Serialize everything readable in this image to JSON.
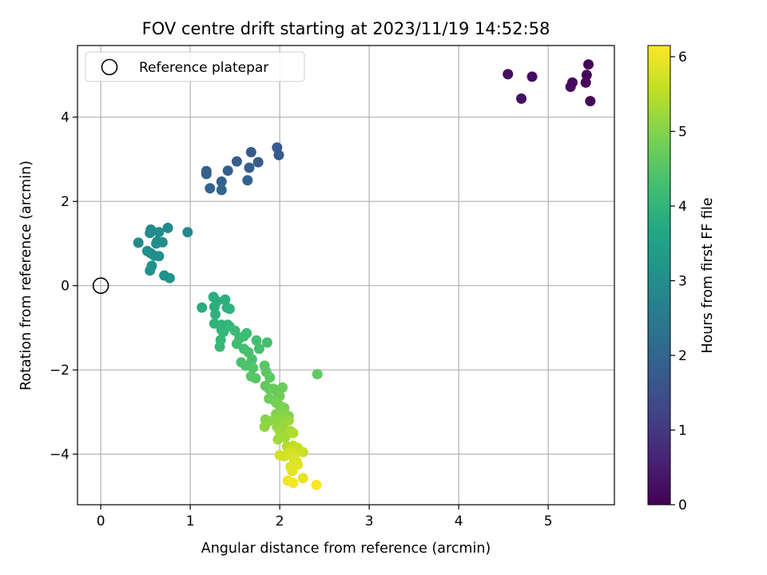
{
  "chart_data": {
    "type": "scatter",
    "title": "FOV centre drift starting at 2023/11/19 14:52:58",
    "xlabel": "Angular distance from reference (arcmin)",
    "ylabel": "Rotation from reference (arcmin)",
    "xlim": [
      -0.26,
      5.74
    ],
    "ylim": [
      -5.2,
      5.7
    ],
    "xticks": [
      0,
      1,
      2,
      3,
      4,
      5
    ],
    "yticks": [
      -4,
      -2,
      0,
      2,
      4
    ],
    "xtick_labels": [
      "0",
      "1",
      "2",
      "3",
      "4",
      "5"
    ],
    "ytick_labels": [
      "−4",
      "−2",
      "0",
      "2",
      "4"
    ],
    "grid": true,
    "legend": {
      "position": "top-left",
      "entries": [
        {
          "label": "Reference platepar",
          "marker": "open-circle"
        }
      ]
    },
    "reference_point": {
      "x": 0,
      "y": 0,
      "label": "Reference platepar"
    },
    "colorbar": {
      "label": "Hours from first FF file",
      "colormap": "viridis",
      "range": [
        0,
        6.15
      ],
      "ticks": [
        0,
        1,
        2,
        3,
        4,
        5,
        6
      ],
      "tick_labels": [
        "0",
        "1",
        "2",
        "3",
        "4",
        "5",
        "6"
      ]
    },
    "points": [
      {
        "x": 5.45,
        "y": 5.25,
        "h": 0.02
      },
      {
        "x": 5.43,
        "y": 5.0,
        "h": 0.05
      },
      {
        "x": 5.42,
        "y": 4.82,
        "h": 0.08
      },
      {
        "x": 5.47,
        "y": 4.38,
        "h": 0.1
      },
      {
        "x": 5.27,
        "y": 4.82,
        "h": 0.12
      },
      {
        "x": 5.25,
        "y": 4.72,
        "h": 0.15
      },
      {
        "x": 4.82,
        "y": 4.96,
        "h": 0.2
      },
      {
        "x": 4.55,
        "y": 5.02,
        "h": 0.25
      },
      {
        "x": 4.7,
        "y": 4.44,
        "h": 0.3
      },
      {
        "x": 1.97,
        "y": 3.28,
        "h": 1.7
      },
      {
        "x": 1.99,
        "y": 3.1,
        "h": 1.72
      },
      {
        "x": 1.68,
        "y": 3.17,
        "h": 1.75
      },
      {
        "x": 1.76,
        "y": 2.93,
        "h": 1.78
      },
      {
        "x": 1.52,
        "y": 2.95,
        "h": 1.8
      },
      {
        "x": 1.66,
        "y": 2.8,
        "h": 1.83
      },
      {
        "x": 1.42,
        "y": 2.73,
        "h": 1.85
      },
      {
        "x": 1.18,
        "y": 2.72,
        "h": 1.88
      },
      {
        "x": 1.18,
        "y": 2.65,
        "h": 1.9
      },
      {
        "x": 1.35,
        "y": 2.47,
        "h": 1.92
      },
      {
        "x": 1.64,
        "y": 2.5,
        "h": 1.95
      },
      {
        "x": 1.22,
        "y": 2.31,
        "h": 1.98
      },
      {
        "x": 1.35,
        "y": 2.27,
        "h": 2.0
      },
      {
        "x": 0.97,
        "y": 1.27,
        "h": 2.85
      },
      {
        "x": 0.75,
        "y": 1.37,
        "h": 2.87
      },
      {
        "x": 0.56,
        "y": 1.33,
        "h": 2.88
      },
      {
        "x": 0.55,
        "y": 1.25,
        "h": 2.9
      },
      {
        "x": 0.65,
        "y": 1.27,
        "h": 2.92
      },
      {
        "x": 0.63,
        "y": 1.05,
        "h": 2.93
      },
      {
        "x": 0.69,
        "y": 1.03,
        "h": 2.95
      },
      {
        "x": 0.62,
        "y": 1.0,
        "h": 2.96
      },
      {
        "x": 0.42,
        "y": 1.02,
        "h": 2.98
      },
      {
        "x": 0.52,
        "y": 0.82,
        "h": 3.0
      },
      {
        "x": 0.56,
        "y": 0.77,
        "h": 3.02
      },
      {
        "x": 0.6,
        "y": 0.71,
        "h": 3.03
      },
      {
        "x": 0.65,
        "y": 0.7,
        "h": 3.05
      },
      {
        "x": 0.57,
        "y": 0.47,
        "h": 3.07
      },
      {
        "x": 0.55,
        "y": 0.36,
        "h": 3.08
      },
      {
        "x": 0.71,
        "y": 0.24,
        "h": 3.1
      },
      {
        "x": 0.77,
        "y": 0.18,
        "h": 3.12
      },
      {
        "x": 1.13,
        "y": -0.52,
        "h": 3.8
      },
      {
        "x": 1.26,
        "y": -0.27,
        "h": 3.82
      },
      {
        "x": 1.27,
        "y": -0.5,
        "h": 3.84
      },
      {
        "x": 1.3,
        "y": -0.37,
        "h": 3.86
      },
      {
        "x": 1.39,
        "y": -0.33,
        "h": 3.88
      },
      {
        "x": 1.41,
        "y": -0.52,
        "h": 3.9
      },
      {
        "x": 1.44,
        "y": -0.55,
        "h": 3.92
      },
      {
        "x": 1.28,
        "y": -0.68,
        "h": 3.94
      },
      {
        "x": 1.27,
        "y": -0.9,
        "h": 3.96
      },
      {
        "x": 1.35,
        "y": -0.93,
        "h": 3.98
      },
      {
        "x": 1.35,
        "y": -1.05,
        "h": 4.0
      },
      {
        "x": 1.42,
        "y": -0.93,
        "h": 4.02
      },
      {
        "x": 1.37,
        "y": -1.1,
        "h": 4.04
      },
      {
        "x": 1.44,
        "y": -0.97,
        "h": 4.06
      },
      {
        "x": 1.34,
        "y": -1.29,
        "h": 4.08
      },
      {
        "x": 1.33,
        "y": -1.45,
        "h": 4.1
      },
      {
        "x": 1.5,
        "y": -1.07,
        "h": 4.15
      },
      {
        "x": 1.55,
        "y": -1.25,
        "h": 4.18
      },
      {
        "x": 1.6,
        "y": -1.2,
        "h": 4.2
      },
      {
        "x": 1.63,
        "y": -1.13,
        "h": 4.22
      },
      {
        "x": 1.52,
        "y": -1.38,
        "h": 4.24
      },
      {
        "x": 1.6,
        "y": -1.5,
        "h": 4.26
      },
      {
        "x": 1.74,
        "y": -1.3,
        "h": 4.28
      },
      {
        "x": 1.77,
        "y": -1.5,
        "h": 4.3
      },
      {
        "x": 1.86,
        "y": -1.35,
        "h": 4.32
      },
      {
        "x": 1.65,
        "y": -1.58,
        "h": 4.34
      },
      {
        "x": 1.69,
        "y": -1.75,
        "h": 4.36
      },
      {
        "x": 1.57,
        "y": -1.82,
        "h": 4.38
      },
      {
        "x": 1.62,
        "y": -1.9,
        "h": 4.4
      },
      {
        "x": 1.7,
        "y": -1.95,
        "h": 4.45
      },
      {
        "x": 1.68,
        "y": -2.15,
        "h": 4.5
      },
      {
        "x": 1.73,
        "y": -2.2,
        "h": 4.52
      },
      {
        "x": 1.83,
        "y": -1.9,
        "h": 4.55
      },
      {
        "x": 1.85,
        "y": -2.05,
        "h": 4.58
      },
      {
        "x": 1.89,
        "y": -2.18,
        "h": 4.6
      },
      {
        "x": 2.42,
        "y": -2.1,
        "h": 4.62
      },
      {
        "x": 1.84,
        "y": -2.38,
        "h": 4.65
      },
      {
        "x": 1.88,
        "y": -2.45,
        "h": 4.68
      },
      {
        "x": 1.93,
        "y": -2.45,
        "h": 4.7
      },
      {
        "x": 1.97,
        "y": -2.52,
        "h": 4.72
      },
      {
        "x": 2.03,
        "y": -2.42,
        "h": 4.74
      },
      {
        "x": 1.88,
        "y": -2.68,
        "h": 4.76
      },
      {
        "x": 1.94,
        "y": -2.72,
        "h": 4.78
      },
      {
        "x": 2.0,
        "y": -2.62,
        "h": 4.8
      },
      {
        "x": 1.96,
        "y": -2.78,
        "h": 4.85
      },
      {
        "x": 2.0,
        "y": -2.85,
        "h": 4.88
      },
      {
        "x": 2.05,
        "y": -2.9,
        "h": 4.9
      },
      {
        "x": 2.06,
        "y": -3.05,
        "h": 4.92
      },
      {
        "x": 2.1,
        "y": -3.1,
        "h": 4.95
      },
      {
        "x": 1.96,
        "y": -3.05,
        "h": 4.98
      },
      {
        "x": 2.04,
        "y": -3.0,
        "h": 5.0
      },
      {
        "x": 1.84,
        "y": -3.18,
        "h": 5.02
      },
      {
        "x": 1.87,
        "y": -3.22,
        "h": 5.05
      },
      {
        "x": 1.94,
        "y": -3.18,
        "h": 5.08
      },
      {
        "x": 2.02,
        "y": -3.15,
        "h": 5.1
      },
      {
        "x": 1.83,
        "y": -3.35,
        "h": 5.12
      },
      {
        "x": 1.97,
        "y": -3.35,
        "h": 5.15
      },
      {
        "x": 2.04,
        "y": -3.3,
        "h": 5.18
      },
      {
        "x": 2.1,
        "y": -3.2,
        "h": 5.2
      },
      {
        "x": 2.0,
        "y": -3.45,
        "h": 5.22
      },
      {
        "x": 2.04,
        "y": -3.52,
        "h": 5.25
      },
      {
        "x": 1.98,
        "y": -3.65,
        "h": 5.28
      },
      {
        "x": 2.06,
        "y": -3.6,
        "h": 5.3
      },
      {
        "x": 2.12,
        "y": -3.45,
        "h": 5.35
      },
      {
        "x": 2.15,
        "y": -3.5,
        "h": 5.4
      },
      {
        "x": 2.08,
        "y": -3.82,
        "h": 5.45
      },
      {
        "x": 2.1,
        "y": -3.88,
        "h": 5.5
      },
      {
        "x": 2.15,
        "y": -3.8,
        "h": 5.55
      },
      {
        "x": 2.2,
        "y": -3.85,
        "h": 5.6
      },
      {
        "x": 2.26,
        "y": -3.95,
        "h": 5.65
      },
      {
        "x": 2.0,
        "y": -4.02,
        "h": 5.7
      },
      {
        "x": 2.05,
        "y": -4.05,
        "h": 5.72
      },
      {
        "x": 2.12,
        "y": -3.95,
        "h": 5.75
      },
      {
        "x": 2.17,
        "y": -4.0,
        "h": 5.78
      },
      {
        "x": 2.16,
        "y": -4.12,
        "h": 5.8
      },
      {
        "x": 2.19,
        "y": -4.18,
        "h": 5.82
      },
      {
        "x": 2.12,
        "y": -4.3,
        "h": 5.85
      },
      {
        "x": 2.2,
        "y": -4.25,
        "h": 5.88
      },
      {
        "x": 2.14,
        "y": -4.4,
        "h": 5.9
      },
      {
        "x": 2.26,
        "y": -4.57,
        "h": 5.95
      },
      {
        "x": 2.09,
        "y": -4.63,
        "h": 6.0
      },
      {
        "x": 2.15,
        "y": -4.68,
        "h": 6.05
      },
      {
        "x": 2.41,
        "y": -4.73,
        "h": 6.1
      }
    ]
  }
}
